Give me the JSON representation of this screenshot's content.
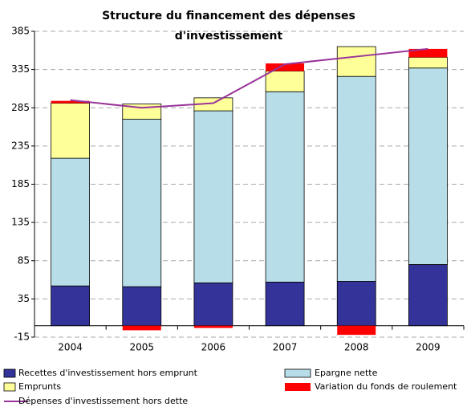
{
  "chart_data": {
    "type": "bar",
    "stacked": true,
    "title": [
      "Structure du financement des dépenses",
      "d'investissement"
    ],
    "categories": [
      "2004",
      "2005",
      "2006",
      "2007",
      "2008",
      "2009"
    ],
    "series": [
      {
        "name": "Recettes d'investissement hors emprunt",
        "color": "#333399",
        "values": [
          52,
          51,
          56,
          57,
          58,
          80
        ]
      },
      {
        "name": "Epargne nette",
        "color": "#b7dde8",
        "values": [
          167,
          219,
          225,
          249,
          268,
          257
        ]
      },
      {
        "name": "Emprunts",
        "color": "#ffff99",
        "values": [
          72,
          20,
          17,
          27,
          39,
          14
        ]
      },
      {
        "name": "Variation du fonds de roulement",
        "color": "#ff0000",
        "values": [
          3,
          -6,
          -3,
          10,
          -12,
          11
        ]
      },
      {
        "name": "Dépenses d'investissement hors dette",
        "color": "#993399",
        "type": "line",
        "values": [
          295,
          285,
          291,
          342,
          352,
          362
        ]
      }
    ],
    "ylim": [
      -15,
      385
    ],
    "yticks": [
      -15,
      35,
      85,
      135,
      185,
      235,
      285,
      335,
      385
    ],
    "grid": true
  }
}
